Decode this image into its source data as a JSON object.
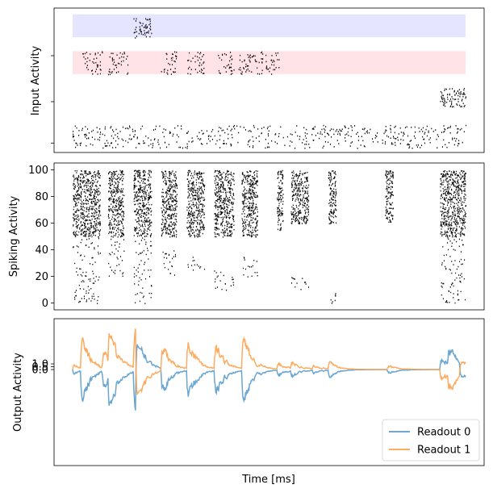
{
  "chart_data": [
    {
      "type": "scatter",
      "subtype": "raster",
      "title": "",
      "xlabel": "",
      "ylabel": "Input Activity",
      "xlim": [
        0,
        1000
      ],
      "ylim": [
        0,
        30
      ],
      "yticks": [
        1,
        10,
        20
      ],
      "yticklabels": [
        "",
        "",
        ""
      ],
      "grid": false,
      "bands": [
        {
          "name": "group-top",
          "color": "#e5e5ff",
          "y0": 24,
          "y1": 29,
          "x0": 0,
          "x1": 1000
        },
        {
          "name": "group-middle",
          "color": "#ffe3e6",
          "y0": 16,
          "y1": 21,
          "x0": 0,
          "x1": 1000
        }
      ],
      "series": [
        {
          "group": "top-band",
          "bursts": [
            [
              155,
              200
            ]
          ],
          "y_range": [
            24,
            28.5
          ],
          "density": 0.6
        },
        {
          "group": "middle-band",
          "bursts": [
            [
              25,
              75
            ],
            [
              90,
              140
            ],
            [
              225,
              265
            ],
            [
              290,
              335
            ],
            [
              370,
              410
            ],
            [
              420,
              470
            ],
            [
              470,
              485
            ],
            [
              490,
              525
            ]
          ],
          "y_range": [
            16,
            21
          ],
          "density": 0.35
        },
        {
          "group": "lower",
          "bursts": [
            [
              935,
              1000
            ]
          ],
          "y_range": [
            9,
            13
          ],
          "density": 0.7
        },
        {
          "group": "bottom",
          "bursts": [
            [
              0,
              1000
            ]
          ],
          "y_range": [
            0,
            5
          ],
          "density": 0.22
        }
      ],
      "marker": {
        "color": "#000000"
      }
    },
    {
      "type": "scatter",
      "subtype": "raster",
      "title": "",
      "xlabel": "",
      "ylabel": "Spiking Activity",
      "xlim": [
        0,
        1000
      ],
      "ylim": [
        -4,
        104
      ],
      "yticks": [
        0,
        20,
        40,
        60,
        80,
        100
      ],
      "yticklabels": [
        "0",
        "20",
        "40",
        "60",
        "80",
        "100"
      ],
      "grid": false,
      "bursts": [
        {
          "x": [
            0,
            70
          ],
          "dense": [
            50,
            100
          ],
          "sparse": [
            0,
            50
          ]
        },
        {
          "x": [
            90,
            130
          ],
          "dense": [
            50,
            100
          ],
          "sparse": [
            20,
            50
          ]
        },
        {
          "x": [
            155,
            200
          ],
          "dense": [
            50,
            100
          ],
          "sparse": [
            0,
            50
          ]
        },
        {
          "x": [
            225,
            265
          ],
          "dense": [
            50,
            100
          ],
          "sparse": [
            20,
            40
          ]
        },
        {
          "x": [
            290,
            335
          ],
          "dense": [
            50,
            100
          ],
          "sparse": [
            25,
            35
          ]
        },
        {
          "x": [
            360,
            410
          ],
          "dense": [
            50,
            100
          ],
          "sparse": [
            10,
            25
          ]
        },
        {
          "x": [
            430,
            470
          ],
          "dense": [
            50,
            100
          ],
          "sparse": [
            20,
            35
          ]
        },
        {
          "x": [
            520,
            535
          ],
          "dense": [
            55,
            100
          ],
          "sparse": []
        },
        {
          "x": [
            555,
            600
          ],
          "dense": [
            60,
            100
          ],
          "sparse": [
            10,
            20
          ]
        },
        {
          "x": [
            650,
            670
          ],
          "dense": [
            60,
            100
          ],
          "sparse": [
            0,
            10
          ]
        },
        {
          "x": [
            795,
            815
          ],
          "dense": [
            60,
            100
          ],
          "sparse": []
        },
        {
          "x": [
            935,
            1000
          ],
          "dense": [
            50,
            100
          ],
          "sparse": [
            0,
            50
          ]
        }
      ],
      "marker": {
        "color": "#000000"
      }
    },
    {
      "type": "line",
      "title": "",
      "xlabel": "Time [ms]",
      "ylabel": "Output Activity",
      "xlim": [
        0,
        1000
      ],
      "ylim": [
        -17,
        9
      ],
      "yticks": [
        1.0,
        0.5,
        0.0
      ],
      "yticklabels": [
        "1.0",
        "0.5",
        "0.0"
      ],
      "grid": false,
      "legend": "lower-right",
      "events": [
        {
          "t": 0,
          "a": 1
        },
        {
          "t": 20,
          "a": 6
        },
        {
          "t": 75,
          "a": 3
        },
        {
          "t": 90,
          "a": 6
        },
        {
          "t": 155,
          "a": 8
        },
        {
          "t": 160,
          "a": -13
        },
        {
          "t": 225,
          "a": 5
        },
        {
          "t": 290,
          "a": 6
        },
        {
          "t": 360,
          "a": 5
        },
        {
          "t": 430,
          "a": 6.5
        },
        {
          "t": 520,
          "a": 1.2
        },
        {
          "t": 555,
          "a": 1.3
        },
        {
          "t": 610,
          "a": 0.8
        },
        {
          "t": 650,
          "a": 1.2
        },
        {
          "t": 800,
          "a": 0.8
        },
        {
          "t": 935,
          "a": -2.5
        },
        {
          "t": 955,
          "a": -3.5
        },
        {
          "t": 985,
          "a": 3
        }
      ],
      "decay_ms": 22,
      "series": [
        {
          "name": "Readout 0",
          "color": "#5b9ccb",
          "sign": -1
        },
        {
          "name": "Readout 1",
          "color": "#fca34f",
          "sign": 1
        }
      ]
    }
  ]
}
